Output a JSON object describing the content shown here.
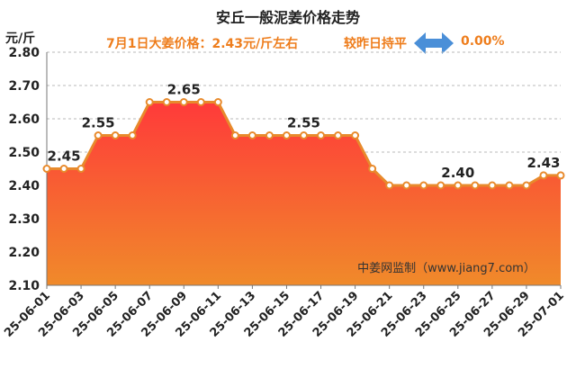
{
  "header": {
    "title": "安丘一般泥姜价格走势",
    "price_note": "7月1日大姜价格：2.43元/斤左右",
    "change_label": "较昨日持平",
    "change_value": "0.00%",
    "unit": "元/斤"
  },
  "watermark": "中姜网监制（www.jiang7.com）",
  "colors": {
    "line": "#e88a2c",
    "fill_top": "#ff3a3a",
    "fill_bottom": "#f08a2a",
    "accent_text": "#ee7d1c",
    "arrow": "#4a8fd8"
  },
  "icons": {
    "change_indicator": "double-arrow-icon"
  },
  "chart_data": {
    "type": "area",
    "x": [
      "25-06-01",
      "25-06-02",
      "25-06-03",
      "25-06-04",
      "25-06-05",
      "25-06-06",
      "25-06-07",
      "25-06-08",
      "25-06-09",
      "25-06-10",
      "25-06-11",
      "25-06-12",
      "25-06-13",
      "25-06-14",
      "25-06-15",
      "25-06-16",
      "25-06-17",
      "25-06-18",
      "25-06-19",
      "25-06-20",
      "25-06-21",
      "25-06-22",
      "25-06-23",
      "25-06-24",
      "25-06-25",
      "25-06-26",
      "25-06-27",
      "25-06-28",
      "25-06-29",
      "25-06-30",
      "25-07-01"
    ],
    "values": [
      2.45,
      2.45,
      2.45,
      2.55,
      2.55,
      2.55,
      2.65,
      2.65,
      2.65,
      2.65,
      2.65,
      2.55,
      2.55,
      2.55,
      2.55,
      2.55,
      2.55,
      2.55,
      2.55,
      2.45,
      2.4,
      2.4,
      2.4,
      2.4,
      2.4,
      2.4,
      2.4,
      2.4,
      2.4,
      2.43,
      2.43
    ],
    "x_tick_labels": [
      "25-06-01",
      "25-06-03",
      "25-06-05",
      "25-06-07",
      "25-06-09",
      "25-06-11",
      "25-06-13",
      "25-06-15",
      "25-06-17",
      "25-06-19",
      "25-06-21",
      "25-06-23",
      "25-06-25",
      "25-06-27",
      "25-06-29",
      "25-07-01"
    ],
    "y_tick_labels": [
      "2.10",
      "2.20",
      "2.30",
      "2.40",
      "2.50",
      "2.60",
      "2.70",
      "2.80"
    ],
    "ylim": [
      2.1,
      2.8
    ],
    "grid": "horizontal dashed",
    "annotations": [
      {
        "x": "25-06-02",
        "value": 2.45,
        "text": "2.45"
      },
      {
        "x": "25-06-04",
        "value": 2.55,
        "text": "2.55"
      },
      {
        "x": "25-06-09",
        "value": 2.65,
        "text": "2.65"
      },
      {
        "x": "25-06-16",
        "value": 2.55,
        "text": "2.55"
      },
      {
        "x": "25-06-25",
        "value": 2.4,
        "text": "2.40"
      },
      {
        "x": "25-06-30",
        "value": 2.43,
        "text": "2.43"
      }
    ]
  }
}
